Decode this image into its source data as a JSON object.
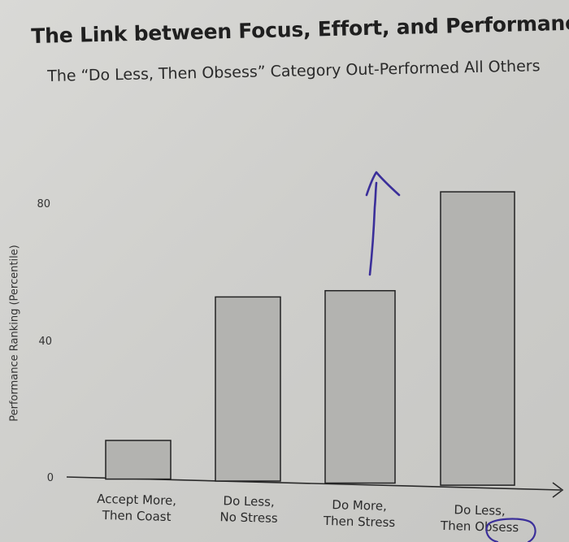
{
  "chart_data": {
    "type": "bar",
    "title": "The Link between Focus, Effort, and Performance",
    "subtitle": "The “Do Less, Then Obsess” Category Out-Performed All Others",
    "xlabel": "",
    "ylabel": "Performance Ranking (Percentile)",
    "ylim": [
      0,
      90
    ],
    "yticks": [
      0,
      40,
      80
    ],
    "categories": [
      [
        "Accept More,",
        "Then Coast"
      ],
      [
        "Do Less,",
        "No Stress"
      ],
      [
        "Do More,",
        "Then Stress"
      ],
      [
        "Do Less,",
        "Then Obsess"
      ]
    ],
    "values": [
      11,
      53,
      55,
      84
    ],
    "bar_color": "#b3b3b0",
    "annotations": {
      "arrow_color": "#3b2f9a",
      "arrow_on_category_index": 2,
      "circled_word": "Obsess"
    }
  }
}
